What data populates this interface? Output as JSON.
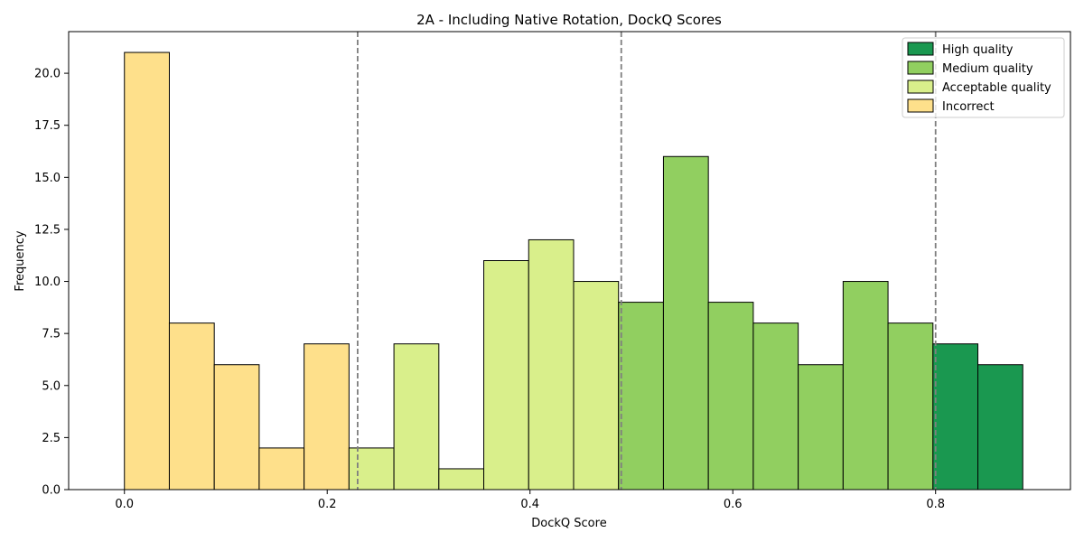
{
  "chart_data": {
    "type": "bar",
    "title": "2A - Including Native Rotation, DockQ Scores",
    "xlabel": "DockQ Score",
    "ylabel": "Frequency",
    "xlim": [
      -0.055,
      0.933
    ],
    "ylim": [
      0,
      22
    ],
    "bin_width": 0.0443,
    "bins": [
      {
        "start": 0.0,
        "value": 21,
        "class": "Incorrect"
      },
      {
        "start": 0.0443,
        "value": 8,
        "class": "Incorrect"
      },
      {
        "start": 0.0886,
        "value": 6,
        "class": "Incorrect"
      },
      {
        "start": 0.1329,
        "value": 2,
        "class": "Incorrect"
      },
      {
        "start": 0.1772,
        "value": 7,
        "class": "Incorrect"
      },
      {
        "start": 0.2215,
        "value": 2,
        "class": "Acceptable quality"
      },
      {
        "start": 0.2658,
        "value": 7,
        "class": "Acceptable quality"
      },
      {
        "start": 0.3101,
        "value": 1,
        "class": "Acceptable quality"
      },
      {
        "start": 0.3544,
        "value": 11,
        "class": "Acceptable quality"
      },
      {
        "start": 0.3987,
        "value": 12,
        "class": "Acceptable quality"
      },
      {
        "start": 0.443,
        "value": 10,
        "class": "Acceptable quality"
      },
      {
        "start": 0.4873,
        "value": 9,
        "class": "Medium quality"
      },
      {
        "start": 0.5316,
        "value": 16,
        "class": "Medium quality"
      },
      {
        "start": 0.5759,
        "value": 9,
        "class": "Medium quality"
      },
      {
        "start": 0.6202,
        "value": 8,
        "class": "Medium quality"
      },
      {
        "start": 0.6645,
        "value": 6,
        "class": "Medium quality"
      },
      {
        "start": 0.7088,
        "value": 10,
        "class": "Medium quality"
      },
      {
        "start": 0.7531,
        "value": 8,
        "class": "Medium quality"
      },
      {
        "start": 0.7974,
        "value": 7,
        "class": "High quality"
      },
      {
        "start": 0.8417,
        "value": 6,
        "class": "High quality"
      }
    ],
    "thresholds": [
      0.23,
      0.49,
      0.8
    ],
    "x_ticks": [
      {
        "value": 0.0,
        "label": "0.0"
      },
      {
        "value": 0.2,
        "label": "0.2"
      },
      {
        "value": 0.4,
        "label": "0.4"
      },
      {
        "value": 0.6,
        "label": "0.6"
      },
      {
        "value": 0.8,
        "label": "0.8"
      }
    ],
    "y_ticks": [
      {
        "value": 0.0,
        "label": "0.0"
      },
      {
        "value": 2.5,
        "label": "2.5"
      },
      {
        "value": 5.0,
        "label": "5.0"
      },
      {
        "value": 7.5,
        "label": "7.5"
      },
      {
        "value": 10.0,
        "label": "10.0"
      },
      {
        "value": 12.5,
        "label": "12.5"
      },
      {
        "value": 15.0,
        "label": "15.0"
      },
      {
        "value": 17.5,
        "label": "17.5"
      },
      {
        "value": 20.0,
        "label": "20.0"
      }
    ],
    "legend": {
      "placement": "top-right",
      "entries": [
        {
          "label": "High quality",
          "color": "#1a9850"
        },
        {
          "label": "Medium quality",
          "color": "#91cf60"
        },
        {
          "label": "Acceptable quality",
          "color": "#d9ef8b"
        },
        {
          "label": "Incorrect",
          "color": "#fee08b"
        }
      ]
    },
    "colors": {
      "High quality": "#1a9850",
      "Medium quality": "#91cf60",
      "Acceptable quality": "#d9ef8b",
      "Incorrect": "#fee08b",
      "threshold_line": "#7f7f7f",
      "bar_edge": "#000000"
    }
  }
}
